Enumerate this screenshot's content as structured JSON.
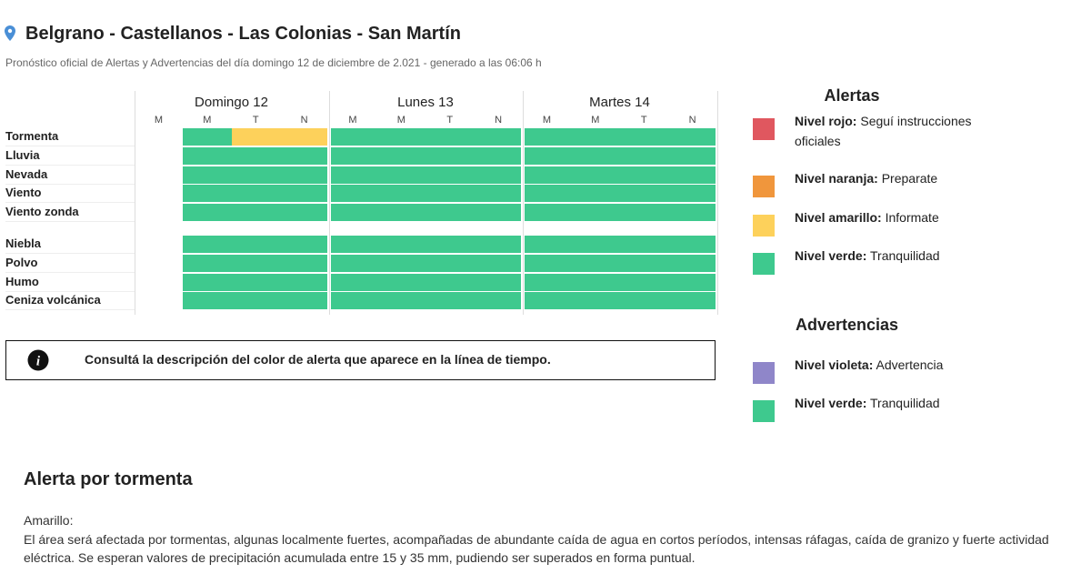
{
  "header": {
    "title": "Belgrano - Castellanos - Las Colonias - San Martín",
    "subtitle": "Pronóstico oficial de Alertas y Advertencias del día domingo 12 de diciembre de 2.021 - generado a las 06:06 h"
  },
  "table": {
    "days": [
      {
        "name": "Domingo 12",
        "periods": [
          "M",
          "M",
          "T",
          "N"
        ]
      },
      {
        "name": "Lunes 13",
        "periods": [
          "M",
          "M",
          "T",
          "N"
        ]
      },
      {
        "name": "Martes 14",
        "periods": [
          "M",
          "M",
          "T",
          "N"
        ]
      }
    ],
    "groups": [
      [
        {
          "name": "Tormenta",
          "cells": [
            null,
            "#3ec98e",
            "#fdd15b",
            "#fdd15b",
            "#3ec98e",
            "#3ec98e",
            "#3ec98e",
            "#3ec98e",
            "#3ec98e",
            "#3ec98e",
            "#3ec98e",
            "#3ec98e"
          ]
        },
        {
          "name": "Lluvia",
          "cells": [
            null,
            "#3ec98e",
            "#3ec98e",
            "#3ec98e",
            "#3ec98e",
            "#3ec98e",
            "#3ec98e",
            "#3ec98e",
            "#3ec98e",
            "#3ec98e",
            "#3ec98e",
            "#3ec98e"
          ]
        },
        {
          "name": "Nevada",
          "cells": [
            null,
            "#3ec98e",
            "#3ec98e",
            "#3ec98e",
            "#3ec98e",
            "#3ec98e",
            "#3ec98e",
            "#3ec98e",
            "#3ec98e",
            "#3ec98e",
            "#3ec98e",
            "#3ec98e"
          ]
        },
        {
          "name": "Viento",
          "cells": [
            null,
            "#3ec98e",
            "#3ec98e",
            "#3ec98e",
            "#3ec98e",
            "#3ec98e",
            "#3ec98e",
            "#3ec98e",
            "#3ec98e",
            "#3ec98e",
            "#3ec98e",
            "#3ec98e"
          ]
        },
        {
          "name": "Viento zonda",
          "cells": [
            null,
            "#3ec98e",
            "#3ec98e",
            "#3ec98e",
            "#3ec98e",
            "#3ec98e",
            "#3ec98e",
            "#3ec98e",
            "#3ec98e",
            "#3ec98e",
            "#3ec98e",
            "#3ec98e"
          ]
        }
      ],
      [
        {
          "name": "Niebla",
          "cells": [
            null,
            "#3ec98e",
            "#3ec98e",
            "#3ec98e",
            "#3ec98e",
            "#3ec98e",
            "#3ec98e",
            "#3ec98e",
            "#3ec98e",
            "#3ec98e",
            "#3ec98e",
            "#3ec98e"
          ]
        },
        {
          "name": "Polvo",
          "cells": [
            null,
            "#3ec98e",
            "#3ec98e",
            "#3ec98e",
            "#3ec98e",
            "#3ec98e",
            "#3ec98e",
            "#3ec98e",
            "#3ec98e",
            "#3ec98e",
            "#3ec98e",
            "#3ec98e"
          ]
        },
        {
          "name": "Humo",
          "cells": [
            null,
            "#3ec98e",
            "#3ec98e",
            "#3ec98e",
            "#3ec98e",
            "#3ec98e",
            "#3ec98e",
            "#3ec98e",
            "#3ec98e",
            "#3ec98e",
            "#3ec98e",
            "#3ec98e"
          ]
        },
        {
          "name": "Ceniza volcánica",
          "cells": [
            null,
            "#3ec98e",
            "#3ec98e",
            "#3ec98e",
            "#3ec98e",
            "#3ec98e",
            "#3ec98e",
            "#3ec98e",
            "#3ec98e",
            "#3ec98e",
            "#3ec98e",
            "#3ec98e"
          ]
        }
      ]
    ]
  },
  "info": "Consultá la descripción del color de alerta que aparece en la línea de tiempo.",
  "legend": {
    "alertas": {
      "title": "Alertas",
      "items": [
        {
          "level": "Nivel rojo:",
          "text": "Seguí instrucciones oficiales",
          "color": "#e0575f"
        },
        {
          "level": "Nivel naranja:",
          "text": "Preparate",
          "color": "#f0963c"
        },
        {
          "level": "Nivel amarillo:",
          "text": "Informate",
          "color": "#fdd15b"
        },
        {
          "level": "Nivel verde:",
          "text": "Tranquilidad",
          "color": "#3ec98e"
        }
      ]
    },
    "advertencias": {
      "title": "Advertencias",
      "items": [
        {
          "level": "Nivel violeta:",
          "text": "Advertencia",
          "color": "#8f86c9"
        },
        {
          "level": "Nivel verde:",
          "text": "Tranquilidad",
          "color": "#3ec98e"
        }
      ]
    }
  },
  "section": {
    "title": "Alerta por tormenta",
    "level": "Amarillo:",
    "text": "El área será afectada por tormentas, algunas localmente fuertes, acompañadas de abundante caída de agua en cortos períodos, intensas ráfagas, caída de granizo y fuerte actividad eléctrica. Se esperan valores de precipitación acumulada entre 15 y 35 mm, pudiendo ser superados en forma puntual."
  }
}
